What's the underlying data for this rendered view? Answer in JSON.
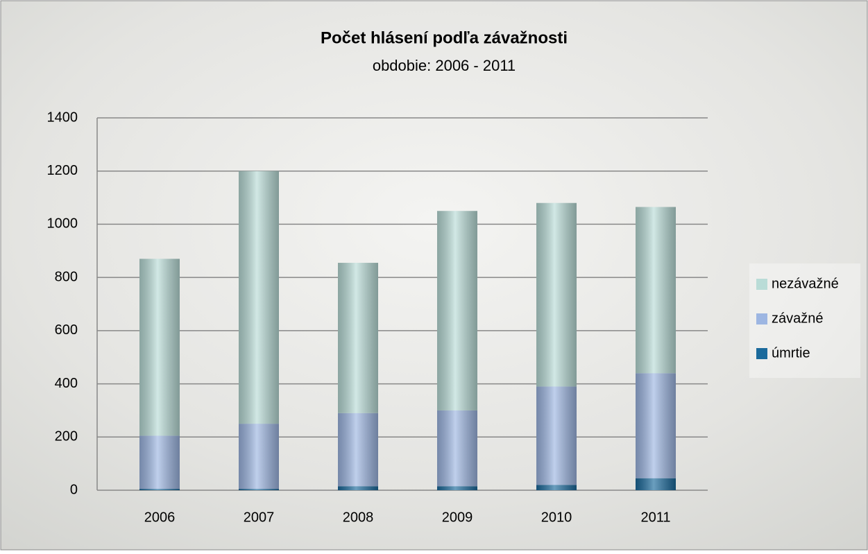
{
  "chart_data": {
    "type": "bar",
    "stacked": true,
    "title": "Počet hlásení podľa závažnosti",
    "subtitle": "obdobie: 2006 - 2011",
    "categories": [
      "2006",
      "2007",
      "2008",
      "2009",
      "2010",
      "2011"
    ],
    "series": [
      {
        "name": "úmrtie",
        "color": "#1b6a9c",
        "values": [
          5,
          5,
          15,
          15,
          20,
          45
        ]
      },
      {
        "name": "závažné",
        "color": "#9db6e2",
        "values": [
          200,
          245,
          275,
          285,
          370,
          395
        ]
      },
      {
        "name": "nezávažné",
        "color": "#b9dcd7",
        "values": [
          665,
          950,
          565,
          750,
          690,
          625
        ]
      }
    ],
    "ylim": [
      0,
      1400
    ],
    "yticks": [
      0,
      200,
      400,
      600,
      800,
      1000,
      1200,
      1400
    ],
    "grid": true,
    "legend": "right"
  }
}
